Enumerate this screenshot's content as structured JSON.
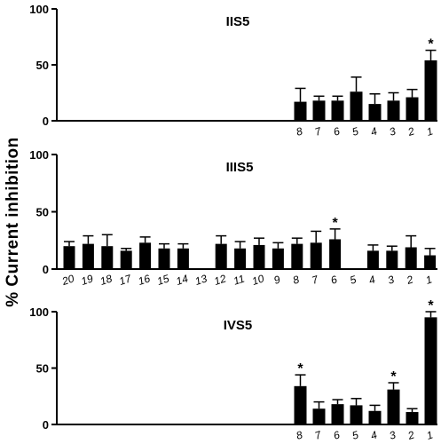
{
  "figure": {
    "ylabel": "% Current inhibition"
  },
  "chart_data": [
    {
      "type": "bar",
      "title": "IIS5",
      "ylim": [
        0,
        100
      ],
      "yticks": [
        0,
        50,
        100
      ],
      "categories": [
        "8",
        "7",
        "6",
        "5",
        "4",
        "3",
        "2",
        "1"
      ],
      "values": [
        17,
        18,
        18,
        26,
        15,
        18,
        21,
        54
      ],
      "errors": [
        12,
        4,
        4,
        13,
        9,
        7,
        7,
        9
      ],
      "significant": [
        "1"
      ]
    },
    {
      "type": "bar",
      "title": "IIIS5",
      "ylim": [
        0,
        100
      ],
      "yticks": [
        0,
        50,
        100
      ],
      "categories": [
        "20",
        "19",
        "18",
        "17",
        "16",
        "15",
        "14",
        "13",
        "12",
        "11",
        "10",
        "9",
        "8",
        "7",
        "6",
        "5",
        "4",
        "3",
        "2",
        "1"
      ],
      "values": [
        20,
        22,
        20,
        16,
        23,
        18,
        18,
        0,
        22,
        18,
        21,
        18,
        22,
        23,
        26,
        0,
        16,
        16,
        19,
        12
      ],
      "errors": [
        4,
        7,
        10,
        2,
        5,
        4,
        4,
        0,
        7,
        6,
        6,
        5,
        5,
        10,
        9,
        0,
        5,
        4,
        10,
        6
      ],
      "significant": [
        "6"
      ]
    },
    {
      "type": "bar",
      "title": "IVS5",
      "ylim": [
        0,
        100
      ],
      "yticks": [
        0,
        50,
        100
      ],
      "categories": [
        "8",
        "7",
        "6",
        "5",
        "4",
        "3",
        "2",
        "1"
      ],
      "values": [
        34,
        14,
        18,
        17,
        12,
        31,
        11,
        95
      ],
      "errors": [
        10,
        6,
        4,
        6,
        5,
        6,
        3,
        5
      ],
      "significant": [
        "8",
        "3",
        "1"
      ]
    }
  ]
}
